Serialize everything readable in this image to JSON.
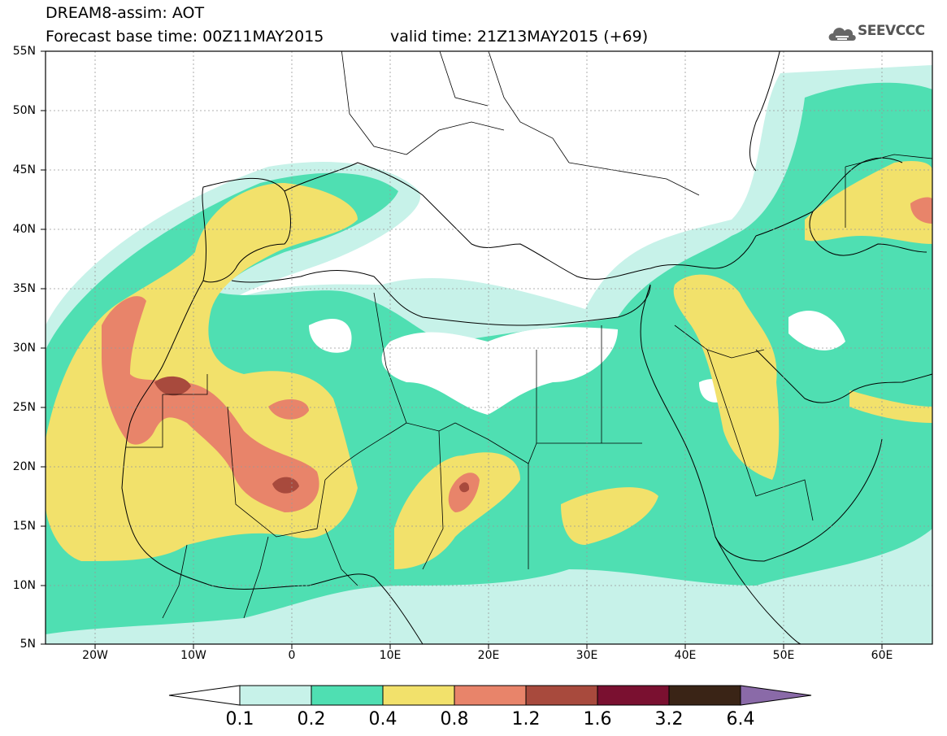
{
  "title": {
    "line1": "DREAM8-assim: AOT",
    "line2": "Forecast base time: 00Z11MAY2015",
    "valid": "valid time: 21Z13MAY2015 (+69)"
  },
  "logo": {
    "text": "SEEVCCC",
    "icon": "cloud-icon"
  },
  "axes": {
    "lat_labels": [
      "55N",
      "50N",
      "45N",
      "40N",
      "35N",
      "30N",
      "25N",
      "20N",
      "15N",
      "10N",
      "5N"
    ],
    "lon_labels": [
      "20W",
      "10W",
      "0",
      "10E",
      "20E",
      "30E",
      "40E",
      "50E",
      "60E"
    ],
    "lat_range": [
      5,
      55
    ],
    "lon_range": [
      -25,
      65
    ]
  },
  "colorbar": {
    "labels": [
      "0.1",
      "0.2",
      "0.4",
      "0.8",
      "1.2",
      "1.6",
      "3.2",
      "6.4"
    ],
    "colors": [
      "#c7f2e9",
      "#4fdfb2",
      "#f2e16b",
      "#e8846a",
      "#a84a3d",
      "#7a1030",
      "#3a2416",
      "#8a6aa8"
    ],
    "under_color": "#ffffff"
  },
  "field_colors": {
    "c01": "#c7f2e9",
    "c02": "#4fdfb2",
    "c04": "#f2e16b",
    "c08": "#e8846a",
    "c12": "#a84a3d"
  }
}
